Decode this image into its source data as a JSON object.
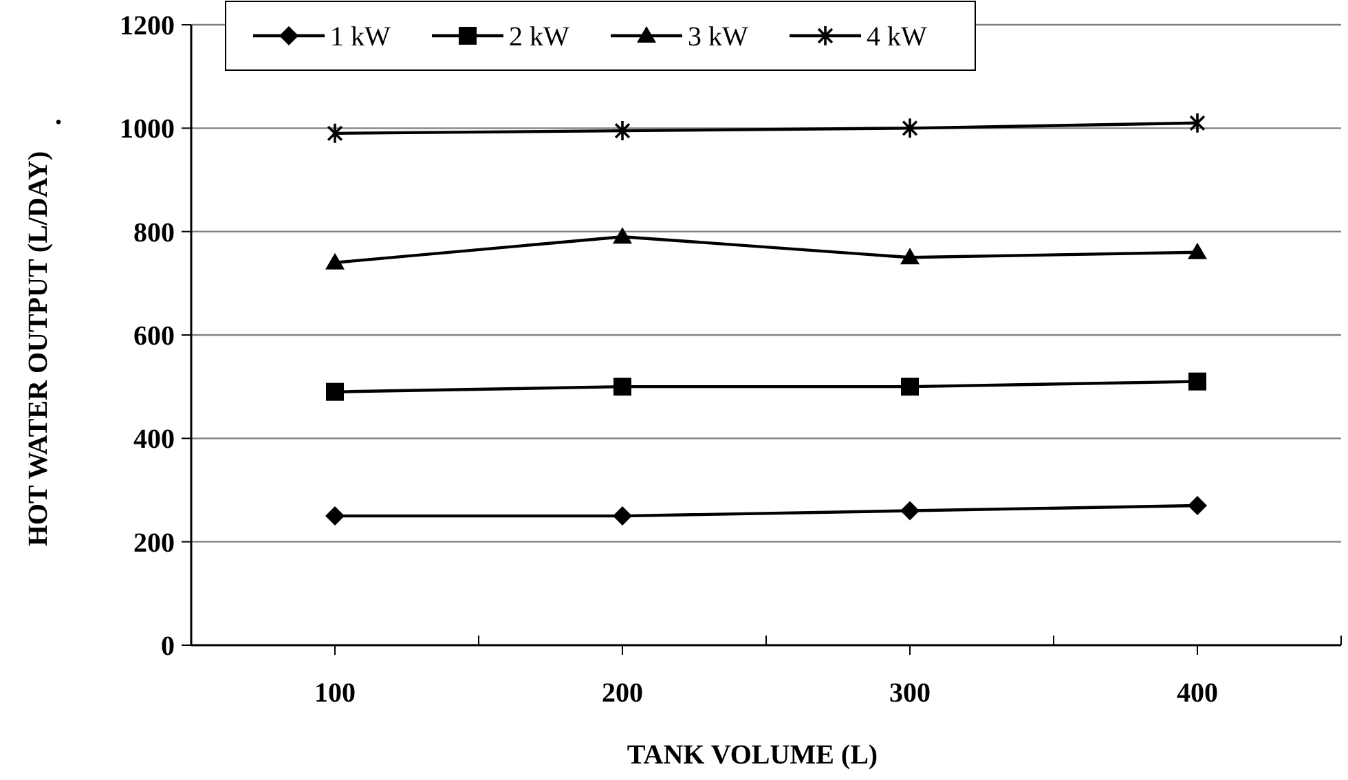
{
  "chart_data": {
    "type": "line",
    "xlabel": "TANK VOLUME (L)",
    "ylabel": "HOT WATER OUTPUT (L/DAY)",
    "categories": [
      "100",
      "200",
      "300",
      "400"
    ],
    "ylim": [
      0,
      1200
    ],
    "yticks": [
      0,
      200,
      400,
      600,
      800,
      1000,
      1200
    ],
    "grid": "y",
    "legend": "top left",
    "line_style": "solid",
    "annotations": [
      "."
    ],
    "series": [
      {
        "name": "1 kW",
        "color": "#000000",
        "marker": "diamond",
        "values": [
          250,
          250,
          260,
          270
        ]
      },
      {
        "name": "2 kW",
        "color": "#000000",
        "marker": "square",
        "values": [
          490,
          500,
          500,
          510
        ]
      },
      {
        "name": "3 kW",
        "color": "#000000",
        "marker": "triangle",
        "values": [
          740,
          790,
          750,
          760
        ]
      },
      {
        "name": "4 kW",
        "color": "#000000",
        "marker": "cross",
        "values": [
          990,
          995,
          1000,
          1010
        ]
      }
    ]
  }
}
